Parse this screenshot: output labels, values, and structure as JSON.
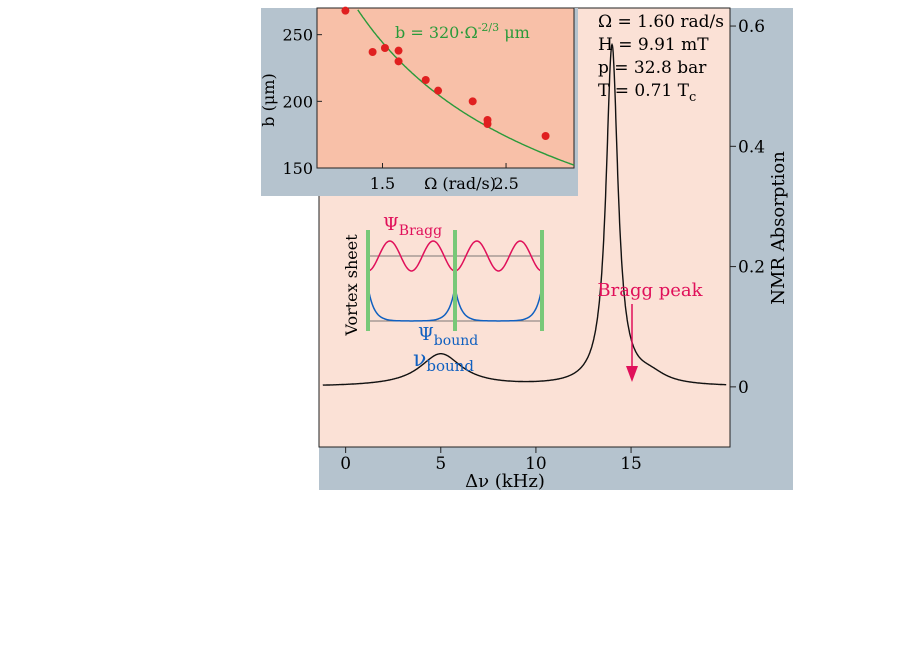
{
  "colors": {
    "frame_blue": "#b5c3ce",
    "panel_pink": "#fbe1d6",
    "inset_pink": "#f8c0a8",
    "fit_green": "#2a9a3a",
    "point_red": "#e02020",
    "bragg_magenta": "#e0105a",
    "bound_blue": "#1060c0",
    "sheet_green": "#78c878",
    "spectrum_black": "#111111"
  },
  "chart_data": [
    {
      "type": "line",
      "xlabel": "Δν (kHz)",
      "ylabel": "NMR Absorption",
      "x_ticks": [
        "0",
        "5",
        "10",
        "15"
      ],
      "x_tick_values": [
        0,
        5,
        10,
        15
      ],
      "y_ticks": [
        "0",
        "0.2",
        "0.4",
        "0.6"
      ],
      "y_tick_values": [
        0,
        0.2,
        0.4,
        0.6
      ],
      "xlim": [
        -1.4,
        20.2
      ],
      "ylim": [
        -0.1,
        0.63
      ],
      "grid": false,
      "series": [
        {
          "peaks": [
            {
              "center": 5.0,
              "height": 0.054,
              "width": 1.35
            },
            {
              "center": 14.0,
              "height": 0.565,
              "width": 0.38
            },
            {
              "center": 16.0,
              "height": 0.015,
              "width": 1.0
            }
          ],
          "baseline": 0.0,
          "x_range": [
            -1.2,
            20.0
          ]
        }
      ],
      "params_lines": [
        {
          "text": "Ω = 1.60 rad/s",
          "sub": ""
        },
        {
          "text": "H = 9.91 mT",
          "sub": ""
        },
        {
          "text": "p = 32.8 bar",
          "sub": ""
        },
        {
          "text": "T = 0.71 T",
          "sub": "c"
        }
      ],
      "annotations": {
        "bragg_peak": "Bragg peak",
        "nu_bound": "ν",
        "nu_bound_sub": "bound",
        "psi_bragg": "Ψ",
        "psi_bragg_sub": "Bragg",
        "psi_bound": "Ψ",
        "psi_bound_sub": "bound",
        "vortex_sheet": "Vortex sheet"
      }
    },
    {
      "type": "scatter",
      "xlabel": "Ω (rad/s)",
      "ylabel": "b (μm)",
      "x_ticks": [
        "1.5",
        "2.5"
      ],
      "x_tick_values": [
        1.5,
        2.5
      ],
      "y_ticks": [
        "150",
        "200",
        "250"
      ],
      "y_tick_values": [
        150,
        200,
        250
      ],
      "xlim": [
        0.97,
        3.05
      ],
      "ylim": [
        150,
        270
      ],
      "fit_label_main": "b = 320·Ω",
      "fit_label_exp": "-2/3",
      "fit_label_unit": " μm",
      "fit": {
        "coefficient": 320,
        "exponent": -0.6667
      },
      "points": [
        {
          "x": 1.2,
          "y": 268
        },
        {
          "x": 1.42,
          "y": 237
        },
        {
          "x": 1.52,
          "y": 240
        },
        {
          "x": 1.63,
          "y": 238
        },
        {
          "x": 1.63,
          "y": 230
        },
        {
          "x": 1.85,
          "y": 216
        },
        {
          "x": 1.95,
          "y": 208
        },
        {
          "x": 2.23,
          "y": 200
        },
        {
          "x": 2.35,
          "y": 186
        },
        {
          "x": 2.35,
          "y": 183
        },
        {
          "x": 2.82,
          "y": 174
        }
      ]
    }
  ]
}
